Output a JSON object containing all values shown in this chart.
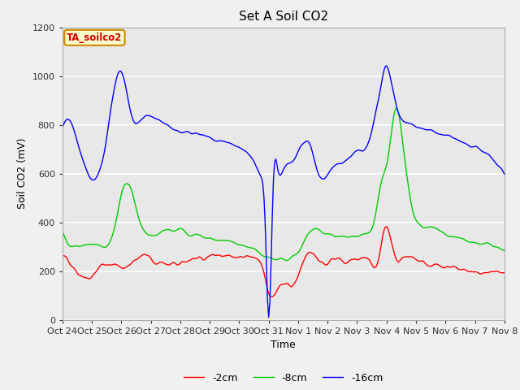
{
  "title": "Set A Soil CO2",
  "xlabel": "Time",
  "ylabel": "Soil CO2 (mV)",
  "ylim": [
    0,
    1200
  ],
  "xlim": [
    0,
    375
  ],
  "tick_labels": [
    "Oct 24",
    "Oct 25",
    "Oct 26",
    "Oct 27",
    "Oct 28",
    "Oct 29",
    "Oct 30",
    "Oct 31",
    "Nov 1",
    "Nov 2",
    "Nov 3",
    "Nov 4",
    "Nov 5",
    "Nov 6",
    "Nov 7",
    "Nov 8"
  ],
  "tick_positions": [
    0,
    25,
    50,
    75,
    100,
    125,
    150,
    175,
    200,
    225,
    250,
    275,
    300,
    325,
    350,
    375
  ],
  "annotation_text": "TA_soilco2",
  "annotation_bg": "#ffffcc",
  "annotation_border": "#cc8800",
  "annotation_text_color": "#cc0000",
  "line_colors": [
    "#ff0000",
    "#00cc00",
    "#0000ff"
  ],
  "line_labels": [
    "-2cm",
    "-8cm",
    "-16cm"
  ],
  "fig_bg": "#f0f0f0",
  "plot_bg": "#e8e8e8",
  "grid_color": "#ffffff",
  "title_fontsize": 11,
  "axis_fontsize": 9,
  "tick_fontsize": 8
}
